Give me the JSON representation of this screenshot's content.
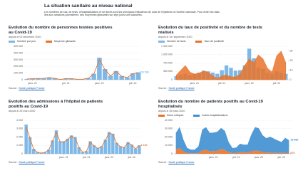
{
  "header": {
    "title": "La situation sanitaire au niveau national",
    "text": "Les nombres de cas, de tests, d'hospitalisations et de décès sont les principaux indicateurs de suivi de l'épidémie à l'échelle nationale. Pour éviter les biais liés aux variations journalières, des moyennes glissantes sur sept jours sont calculées."
  },
  "chart_data": [
    {
      "type": "combo",
      "title": "Evolution du nombre de personnes testées positives au Covid-19",
      "subtitle": "depuis le 03 décembre 2020",
      "source_label": "Source :",
      "source": "Santé publique France",
      "categories": [
        null,
        "janv. 21",
        null,
        null,
        null,
        null,
        null,
        "juil. 21",
        null,
        null,
        null,
        null,
        null,
        "janv. 22",
        null,
        null,
        null,
        null,
        null,
        "juil. 22",
        null
      ],
      "series": [
        {
          "name": "Nombre par jour",
          "type": "bar",
          "color": "#7fb8e6",
          "values": [
            12000,
            18000,
            20000,
            22000,
            35000,
            22000,
            6000,
            20000,
            18000,
            8000,
            7000,
            25000,
            90000,
            330000,
            160000,
            60000,
            130000,
            55000,
            35000,
            95000,
            110536
          ],
          "value_labels": [
            null,
            null,
            null,
            null,
            null,
            null,
            null,
            null,
            null,
            null,
            null,
            null,
            null,
            null,
            null,
            null,
            null,
            null,
            null,
            null,
            "110 536"
          ]
        },
        {
          "name": "Moyenne glissante",
          "type": "line",
          "color": "#e8732a",
          "values": [
            11000,
            17000,
            19000,
            21000,
            33000,
            20000,
            5000,
            18000,
            17000,
            7500,
            7000,
            23000,
            85000,
            300000,
            150000,
            58000,
            125000,
            52000,
            33000,
            90000,
            105000
          ]
        }
      ],
      "ylim": [
        0,
        500000
      ],
      "yticks": [
        0,
        {
          "value": 100000,
          "label": "100 000"
        },
        {
          "value": 200000,
          "label": "200 000"
        },
        {
          "value": 300000,
          "label": "300 000"
        },
        {
          "value": 400000,
          "label": "400 000"
        },
        {
          "value": 500000,
          "label": "500 000"
        }
      ],
      "grid": true
    },
    {
      "type": "combo",
      "title": "Evolution du taux de positivité et du nombre de tests réalisés",
      "subtitle": "depuis le 1er septembre 2020",
      "source_label": "Source :",
      "source": "Santé publique France",
      "categories": [
        null,
        null,
        null,
        null,
        "janv. 21",
        null,
        null,
        null,
        null,
        null,
        "juil. 21",
        null,
        null,
        null,
        null,
        null,
        "janv. 22",
        null,
        null,
        null,
        null,
        null,
        "juil. 22",
        null,
        null
      ],
      "series": [
        {
          "name": "Nombre de tests",
          "type": "bar",
          "color": "#7fb8e6",
          "values": [
            150000,
            200000,
            250000,
            180000,
            250000,
            300000,
            380000,
            350000,
            300000,
            250000,
            400000,
            600000,
            500000,
            380000,
            400000,
            600000,
            1300000,
            900000,
            500000,
            450000,
            300000,
            250000,
            350000,
            300000,
            250000
          ]
        },
        {
          "name": "Taux de positivité",
          "type": "area",
          "axis": "y2",
          "color": "#e8732a",
          "values": [
            5,
            10,
            15,
            8,
            6,
            7,
            9,
            8,
            4,
            1.5,
            4,
            5,
            3,
            3,
            6,
            15,
            22,
            18,
            26,
            22,
            12,
            8,
            25,
            30,
            18
          ]
        }
      ],
      "ylim": [
        0,
        1400000
      ],
      "yticks": [
        0,
        {
          "value": 350000,
          "label": "350 000"
        },
        {
          "value": 700000,
          "label": "700 000"
        },
        {
          "value": 1050000,
          "label": "1 050 000"
        },
        {
          "value": 1400000,
          "label": "1 400 000"
        }
      ],
      "y2lim": [
        0,
        35
      ],
      "y2ticks": [
        0,
        10,
        20,
        30
      ],
      "grid": true
    },
    {
      "type": "combo",
      "title": "Evolution des admissions à l'hôpital de patients positifs au Covid-19",
      "subtitle": "depuis le 25 mars 2020",
      "source_label": "Source :",
      "source": "Santé publique France",
      "categories": [
        null,
        null,
        null,
        null,
        null,
        null,
        null,
        null,
        null,
        null,
        "janv. 21",
        null,
        null,
        null,
        null,
        null,
        "juil. 21",
        null,
        null,
        null,
        null,
        null,
        "janv. 22",
        null,
        null,
        null,
        null,
        null,
        "juil. 22",
        null,
        null
      ],
      "series": [
        {
          "type": "bar",
          "color": "#7fb8e6",
          "values": [
            3500,
            2000,
            600,
            200,
            100,
            200,
            500,
            1600,
            2800,
            1500,
            1500,
            1800,
            2200,
            2000,
            800,
            200,
            300,
            1500,
            1000,
            700,
            900,
            1700,
            2600,
            2400,
            1300,
            900,
            800,
            1400,
            1100,
            600,
            1010
          ]
        },
        {
          "type": "line",
          "color": "#e8732a",
          "values": [
            3200,
            1900,
            550,
            180,
            90,
            180,
            450,
            1500,
            2600,
            1450,
            1400,
            1700,
            2100,
            1900,
            750,
            190,
            280,
            1400,
            950,
            650,
            850,
            1600,
            2500,
            2300,
            1250,
            850,
            750,
            1300,
            1050,
            580,
            1010
          ],
          "value_labels": [
            null,
            null,
            null,
            null,
            null,
            null,
            null,
            null,
            null,
            null,
            null,
            null,
            null,
            null,
            null,
            null,
            null,
            null,
            null,
            null,
            null,
            null,
            null,
            null,
            null,
            null,
            null,
            null,
            null,
            null,
            "1 010"
          ]
        }
      ],
      "ylim": [
        0,
        4000
      ],
      "yticks": [
        0,
        {
          "value": 1000,
          "label": "1 000"
        },
        {
          "value": 2000,
          "label": "2 000"
        },
        {
          "value": 3000,
          "label": "3 000"
        },
        {
          "value": 4000,
          "label": "4 000"
        }
      ],
      "grid": true
    },
    {
      "type": "area",
      "stacked": true,
      "title": "Evolution du nombre de patients positifs au Covid-19 hospitalisés",
      "subtitle": "depuis le 25 mars 2020",
      "source_label": "Source :",
      "source": "Santé publique France",
      "categories": [
        null,
        null,
        null,
        null,
        null,
        null,
        null,
        null,
        null,
        null,
        "janv. 21",
        null,
        null,
        null,
        null,
        null,
        "juil. 21",
        null,
        null,
        null,
        null,
        null,
        "janv. 22",
        null,
        null,
        null,
        null,
        null,
        "juil. 22",
        null,
        null
      ],
      "series": [
        {
          "name": "Soins critiques",
          "color": "#e8732a",
          "values": [
            5000,
            7000,
            3000,
            1000,
            500,
            500,
            1000,
            4000,
            4800,
            3000,
            3300,
            3500,
            5900,
            4500,
            2000,
            900,
            1000,
            2000,
            2000,
            1500,
            3000,
            3900,
            3400,
            2200,
            1600,
            1400,
            1200,
            1000,
            1100,
            1000,
            875
          ],
          "value_labels": [
            null,
            null,
            null,
            null,
            null,
            null,
            null,
            null,
            null,
            null,
            null,
            null,
            null,
            null,
            null,
            null,
            null,
            null,
            null,
            null,
            null,
            null,
            null,
            null,
            null,
            null,
            null,
            null,
            null,
            null,
            "875"
          ]
        },
        {
          "name": "Autres hospitalisations",
          "color": "#3f8fd0",
          "values": [
            20000,
            25000,
            14000,
            6000,
            4500,
            4500,
            8000,
            25000,
            27000,
            22000,
            22000,
            23000,
            25000,
            23000,
            12000,
            6000,
            6500,
            10000,
            9000,
            9500,
            20000,
            28000,
            27000,
            20000,
            17000,
            19000,
            17000,
            15000,
            13000,
            18000,
            15550
          ],
          "value_labels": [
            null,
            null,
            null,
            null,
            null,
            null,
            null,
            null,
            null,
            null,
            null,
            null,
            null,
            null,
            null,
            null,
            null,
            null,
            null,
            null,
            null,
            null,
            null,
            null,
            null,
            null,
            null,
            null,
            null,
            null,
            "15 550"
          ]
        }
      ],
      "ylim": [
        0,
        40000
      ],
      "yticks": [
        0,
        {
          "value": 10000,
          "label": "10 000"
        },
        {
          "value": 20000,
          "label": "20 000"
        },
        {
          "value": 30000,
          "label": "30 000"
        },
        {
          "value": 40000,
          "label": "40 000"
        }
      ],
      "grid": true
    }
  ]
}
